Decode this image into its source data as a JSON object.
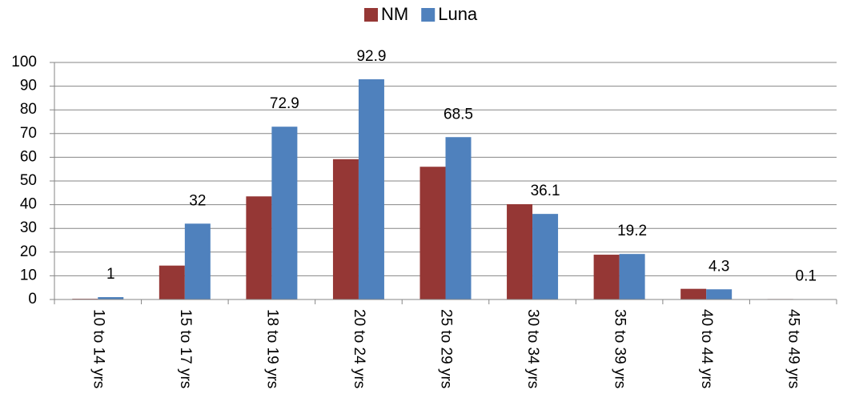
{
  "chart_data": {
    "type": "bar",
    "categories": [
      "10 to 14 yrs",
      "15 to 17 yrs",
      "18 to 19 yrs",
      "20 to 24 yrs",
      "25 to 29 yrs",
      "30 to 34 yrs",
      "35 to 39 yrs",
      "40 to 44 yrs",
      "45 to 49 yrs"
    ],
    "series": [
      {
        "name": "NM",
        "color": "#953735",
        "values": [
          0.3,
          14.3,
          43.5,
          59.2,
          56,
          40.2,
          18.9,
          4.5,
          0.2
        ]
      },
      {
        "name": "Luna",
        "color": "#4f81bd",
        "values": [
          1,
          32,
          72.9,
          92.9,
          68.5,
          36.1,
          19.2,
          4.3,
          0.1
        ],
        "show_labels": true
      }
    ],
    "ylim": [
      0,
      100
    ],
    "yticks": [
      0,
      10,
      20,
      30,
      40,
      50,
      60,
      70,
      80,
      90,
      100
    ],
    "grid": true,
    "legend": "top"
  }
}
